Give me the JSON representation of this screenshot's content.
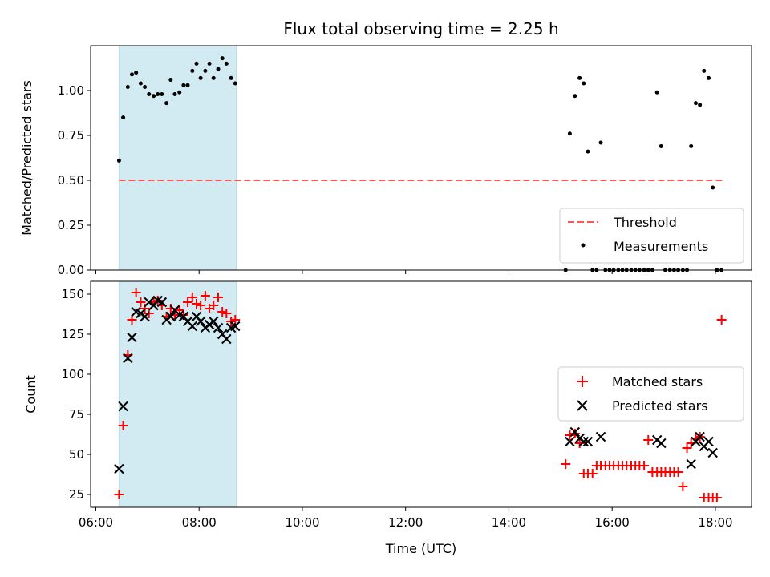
{
  "title": "Flux total observing time = 2.25 h",
  "colors": {
    "shade": "#add8e6",
    "threshold": "#ff5555",
    "measurement": "#000000",
    "matched": "#ff0000",
    "predicted": "#000000"
  },
  "chart_data": [
    {
      "type": "scatter",
      "panel": "top",
      "ylabel": "Matched/Predicted stars",
      "ylim": [
        0,
        1.25
      ],
      "yticks": [
        0.0,
        0.25,
        0.5,
        0.75,
        1.0
      ],
      "ytick_labels": [
        "0.00",
        "0.25",
        "0.50",
        "0.75",
        "1.00"
      ],
      "shaded_span_hours": [
        6.45,
        8.72
      ],
      "threshold": {
        "name": "Threshold",
        "y": 0.5,
        "x_range_hours": [
          6.45,
          18.15
        ]
      },
      "series": [
        {
          "name": "Measurements",
          "x_hours": [
            6.45,
            6.53,
            6.62,
            6.7,
            6.78,
            6.87,
            6.95,
            7.03,
            7.12,
            7.2,
            7.28,
            7.37,
            7.45,
            7.53,
            7.62,
            7.7,
            7.78,
            7.87,
            7.95,
            8.03,
            8.12,
            8.2,
            8.28,
            8.37,
            8.45,
            8.53,
            8.62,
            8.7,
            15.1,
            15.18,
            15.28,
            15.37,
            15.45,
            15.53,
            15.62,
            15.7,
            15.78,
            15.87,
            15.95,
            16.03,
            16.12,
            16.2,
            16.28,
            16.37,
            16.45,
            16.53,
            16.62,
            16.7,
            16.78,
            16.87,
            16.95,
            17.03,
            17.12,
            17.2,
            17.28,
            17.37,
            17.45,
            17.53,
            17.62,
            17.7,
            17.78,
            17.87,
            17.95,
            18.03,
            18.12
          ],
          "y": [
            0.61,
            0.85,
            1.02,
            1.09,
            1.1,
            1.04,
            1.02,
            0.98,
            0.97,
            0.98,
            0.98,
            0.93,
            1.06,
            0.98,
            0.99,
            1.03,
            1.03,
            1.11,
            1.15,
            1.07,
            1.11,
            1.15,
            1.07,
            1.12,
            1.18,
            1.15,
            1.07,
            1.04,
            0.0,
            0.76,
            0.97,
            1.07,
            1.04,
            0.66,
            0.0,
            0.0,
            0.71,
            0.0,
            0.0,
            0.0,
            0.0,
            0.0,
            0.0,
            0.0,
            0.0,
            0.0,
            0.0,
            0.0,
            0.0,
            0.99,
            0.69,
            0.0,
            0.0,
            0.0,
            0.0,
            0.0,
            0.0,
            0.69,
            0.93,
            0.92,
            1.11,
            1.07,
            0.46,
            0.0,
            0.0
          ]
        }
      ],
      "legend": {
        "placement": "lower-right",
        "entries": [
          "Threshold",
          "Measurements"
        ]
      }
    },
    {
      "type": "scatter",
      "panel": "bottom",
      "ylabel": "Count",
      "xlabel": "Time (UTC)",
      "ylim": [
        17,
        158
      ],
      "yticks": [
        25,
        50,
        75,
        100,
        125,
        150
      ],
      "ytick_labels": [
        "25",
        "50",
        "75",
        "100",
        "125",
        "150"
      ],
      "xlim_hours": [
        5.9,
        18.7
      ],
      "xticks_hours": [
        6,
        8,
        10,
        12,
        14,
        16,
        18
      ],
      "xtick_labels": [
        "06:00",
        "08:00",
        "10:00",
        "12:00",
        "14:00",
        "16:00",
        "18:00"
      ],
      "shaded_span_hours": [
        6.45,
        8.72
      ],
      "series": [
        {
          "name": "Matched stars",
          "marker": "+",
          "x_hours": [
            6.45,
            6.53,
            6.62,
            6.7,
            6.78,
            6.87,
            6.95,
            7.03,
            7.12,
            7.2,
            7.28,
            7.37,
            7.45,
            7.53,
            7.62,
            7.7,
            7.78,
            7.87,
            7.95,
            8.03,
            8.12,
            8.2,
            8.28,
            8.37,
            8.45,
            8.53,
            8.62,
            8.7,
            15.1,
            15.18,
            15.28,
            15.37,
            15.45,
            15.53,
            15.62,
            15.7,
            15.78,
            15.87,
            15.95,
            16.03,
            16.12,
            16.2,
            16.28,
            16.37,
            16.45,
            16.53,
            16.62,
            16.7,
            16.78,
            16.87,
            16.95,
            17.03,
            17.12,
            17.2,
            17.28,
            17.37,
            17.45,
            17.53,
            17.62,
            17.7,
            17.78,
            17.87,
            17.95,
            18.03,
            18.12
          ],
          "y": [
            25,
            68,
            112,
            134,
            151,
            145,
            141,
            138,
            145,
            146,
            143,
            136,
            141,
            137,
            140,
            137,
            145,
            148,
            144,
            143,
            149,
            141,
            143,
            148,
            139,
            138,
            133,
            134,
            44,
            62,
            63,
            57,
            38,
            38,
            38,
            43,
            43,
            43,
            43,
            43,
            43,
            43,
            43,
            43,
            43,
            43,
            43,
            59,
            39,
            39,
            39,
            39,
            39,
            39,
            39,
            30,
            54,
            57,
            60,
            61,
            23,
            23,
            23,
            23,
            134
          ]
        },
        {
          "name": "Predicted stars",
          "marker": "x",
          "x_hours": [
            6.45,
            6.53,
            6.62,
            6.7,
            6.78,
            6.87,
            6.95,
            7.03,
            7.12,
            7.2,
            7.28,
            7.37,
            7.45,
            7.53,
            7.62,
            7.7,
            7.78,
            7.87,
            7.95,
            8.03,
            8.12,
            8.2,
            8.28,
            8.37,
            8.45,
            8.53,
            8.62,
            8.7,
            15.18,
            15.28,
            15.37,
            15.45,
            15.53,
            15.78,
            16.87,
            16.95,
            17.53,
            17.62,
            17.7,
            17.78,
            17.87,
            17.95
          ],
          "y": [
            41,
            80,
            110,
            123,
            139,
            138,
            136,
            145,
            143,
            146,
            145,
            134,
            136,
            140,
            137,
            136,
            133,
            130,
            136,
            133,
            129,
            131,
            133,
            129,
            125,
            122,
            129,
            130,
            58,
            64,
            60,
            58,
            58,
            61,
            59,
            57,
            44,
            58,
            61,
            55,
            58,
            51
          ]
        }
      ],
      "legend": {
        "placement": "center-right",
        "entries": [
          "Matched stars",
          "Predicted stars"
        ]
      }
    }
  ]
}
